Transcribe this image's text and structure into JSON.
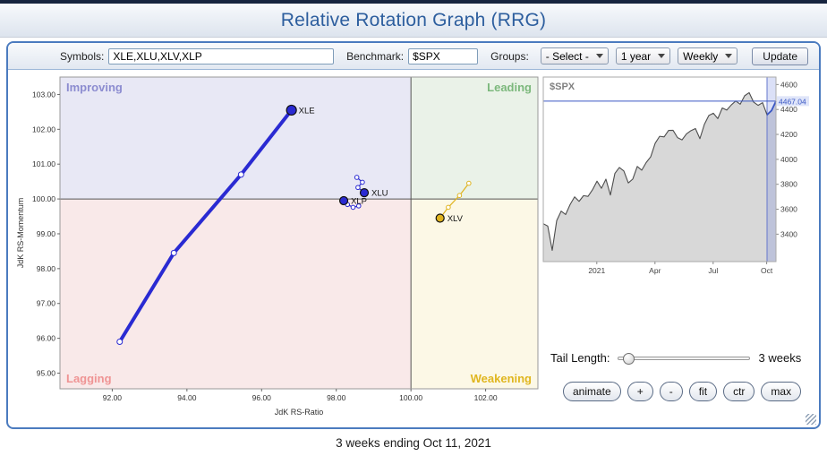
{
  "header": {
    "title": "Relative Rotation Graph (RRG)"
  },
  "toolbar": {
    "symbols_label": "Symbols:",
    "symbols_value": "XLE,XLU,XLV,XLP",
    "benchmark_label": "Benchmark:",
    "benchmark_value": "$SPX",
    "groups_label": "Groups:",
    "groups_select_value": "- Select -",
    "range_select_value": "1 year",
    "frequency_select_value": "Weekly",
    "update_label": "Update"
  },
  "controls": {
    "tail_length_label": "Tail Length:",
    "tail_length_value": "3 weeks",
    "buttons": [
      "animate",
      "+",
      "-",
      "fit",
      "ctr",
      "max"
    ]
  },
  "footer": {
    "caption": "3 weeks ending Oct 11, 2021"
  },
  "colors": {
    "improving_fill": "#e8e8f5",
    "leading_fill": "#eaf2e8",
    "lagging_fill": "#f9e9e9",
    "weakening_fill": "#fcf8e6",
    "improving_label": "#8c8cd0",
    "leading_label": "#7cb87c",
    "lagging_label": "#ef9494",
    "weakening_label": "#e0b61f",
    "blue_series": "#2a2ad2",
    "yellow_series": "#dfb31e",
    "spx_line": "#4d4d4d",
    "spx_fill": "#d8d8d8",
    "level_line": "#3a57c4",
    "highlight_band": "rgba(110,130,225,0.25)"
  },
  "chart_data": [
    {
      "type": "scatter",
      "name": "rrg",
      "xlabel": "JdK RS-Ratio",
      "ylabel": "JdK RS-Momentum",
      "xlim": [
        90.6,
        103.4
      ],
      "ylim": [
        94.55,
        103.5
      ],
      "x_ticks": [
        92,
        94,
        96,
        98,
        100,
        102
      ],
      "y_ticks": [
        95,
        96,
        97,
        98,
        99,
        100,
        101,
        102,
        103
      ],
      "center": [
        100,
        100
      ],
      "quadrant_labels": {
        "top_left": "Improving",
        "top_right": "Leading",
        "bottom_left": "Lagging",
        "bottom_right": "Weakening"
      },
      "series": [
        {
          "name": "XLE",
          "color": "#2a2ad2",
          "width": 4,
          "points": [
            [
              92.2,
              95.9
            ],
            [
              93.65,
              98.45
            ],
            [
              95.45,
              100.7
            ],
            [
              96.8,
              102.55
            ]
          ]
        },
        {
          "name": "XLU",
          "color": "#2a2ad2",
          "width": 1.2,
          "points": [
            [
              98.55,
              100.62
            ],
            [
              98.7,
              100.48
            ],
            [
              98.58,
              100.33
            ],
            [
              98.75,
              100.18
            ]
          ]
        },
        {
          "name": "XLP",
          "color": "#2a2ad2",
          "width": 1.2,
          "points": [
            [
              98.6,
              99.8
            ],
            [
              98.45,
              99.76
            ],
            [
              98.3,
              99.84
            ],
            [
              98.2,
              99.95
            ]
          ]
        },
        {
          "name": "XLV",
          "color": "#dfb31e",
          "width": 1.2,
          "points": [
            [
              101.55,
              100.45
            ],
            [
              101.3,
              100.1
            ],
            [
              101.0,
              99.76
            ],
            [
              100.78,
              99.45
            ]
          ]
        }
      ]
    },
    {
      "type": "area",
      "name": "spx",
      "title": "$SPX",
      "last_price": "4467.04",
      "last_value": 4467.04,
      "ylim": [
        3180,
        4660
      ],
      "y_ticks": [
        3400,
        3600,
        3800,
        4000,
        4200,
        4400,
        4600
      ],
      "x_tick_labels": [
        "2021",
        "Apr",
        "Jul",
        "Oct"
      ],
      "x_tick_positions": [
        0.23,
        0.48,
        0.73,
        0.96
      ],
      "highlight_weeks": 3,
      "values": [
        3484,
        3465,
        3270,
        3509,
        3585,
        3558,
        3638,
        3699,
        3663,
        3709,
        3703,
        3756,
        3825,
        3768,
        3841,
        3714,
        3887,
        3935,
        3907,
        3811,
        3842,
        3943,
        3913,
        3975,
        4020,
        4129,
        4185,
        4180,
        4232,
        4233,
        4174,
        4156,
        4204,
        4230,
        4247,
        4166,
        4281,
        4352,
        4370,
        4327,
        4412,
        4395,
        4436,
        4468,
        4442,
        4510,
        4535,
        4459,
        4433,
        4455,
        4357,
        4391,
        4467
      ]
    }
  ]
}
